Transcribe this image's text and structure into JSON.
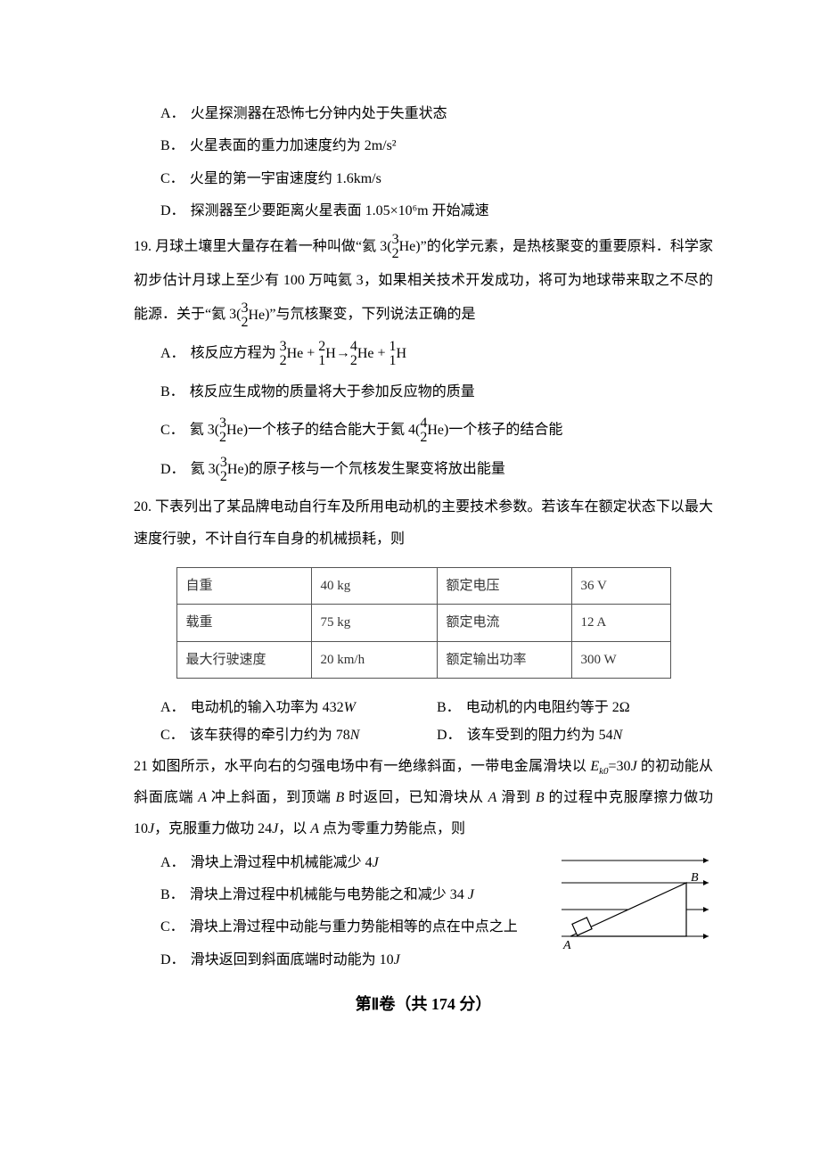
{
  "q18": {
    "A": "火星探测器在恐怖七分钟内处于失重状态",
    "B": "火星表面的重力加速度约为 2m/s²",
    "C": "火星的第一宇宙速度约 1.6km/s",
    "D": "探测器至少要距离火星表面 1.05×10⁶m 开始减速"
  },
  "q19": {
    "stem1": "19. 月球土壤里大量存在着一种叫做“氦 3(",
    "he3_a": "3",
    "he3_z": "2",
    "he3_sym": "He",
    "stem2": ")”的化学元素，是热核聚变的重要原料．科学家初步估计月球上至少有 100 万吨氦 3，如果相关技术开发成功，将可为地球带来取之不尽的能源．关于“氦 3(",
    "stem3": ")”与氘核聚变，下列说法正确的是",
    "A_pre": "核反应方程为 ",
    "eq": {
      "t1_a": "3",
      "t1_z": "2",
      "t1_s": "He",
      "plus1": " + ",
      "t2_a": "2",
      "t2_z": "1",
      "t2_s": "H",
      "arrow": "→",
      "t3_a": "4",
      "t3_z": "2",
      "t3_s": "He",
      "plus2": " + ",
      "t4_a": "1",
      "t4_z": "1",
      "t4_s": "H"
    },
    "B": "核反应生成物的质量将大于参加反应物的质量",
    "C_pre": "氦 3(",
    "C_mid": ")一个核子的结合能大于氦 4(",
    "he4_a": "4",
    "he4_z": "2",
    "he4_sym": "He",
    "C_post": ")一个核子的结合能",
    "D_pre": "氦 3(",
    "D_post": ")的原子核与一个氘核发生聚变将放出能量"
  },
  "q20": {
    "stem": "20. 下表列出了某品牌电动自行车及所用电动机的主要技术参数。若该车在额定状态下以最大速度行驶，不计自行车自身的机械损耗，则",
    "table": {
      "rows": [
        [
          "自重",
          "40 kg",
          "额定电压",
          "36 V"
        ],
        [
          "载重",
          "75 kg",
          "额定电流",
          "12 A"
        ],
        [
          "最大行驶速度",
          "20 km/h",
          "额定输出功率",
          "300 W"
        ]
      ],
      "col_widths": [
        "130px",
        "120px",
        "130px",
        "90px"
      ]
    },
    "A": "电动机的输入功率为 432",
    "A_unit": "W",
    "B": "电动机的内电阻约等于 2Ω",
    "C": "该车获得的牵引力约为 78",
    "C_unit": "N",
    "D": "该车受到的阻力约为 54",
    "D_unit": "N"
  },
  "q21": {
    "stem_a": "21 如图所示，水平向右的匀强电场中有一绝缘斜面，一带电金属滑块以 ",
    "Ek0": "E",
    "Ek0_sub": "k0",
    "Ek0_val": "=30",
    "J": "J",
    "stem_b": " 的初动能从斜面底端 ",
    "A_pt": "A",
    "stem_c": " 冲上斜面，到顶端 ",
    "B_pt": "B",
    "stem_d": " 时返回，已知滑块从 ",
    "stem_e": " 滑到 ",
    "stem_f": " 的过程中克服摩擦力做功 10",
    "stem_g": "，克服重力做功 24",
    "stem_h": "，以 ",
    "stem_i": " 点为零重力势能点，则",
    "A": "滑块上滑过程中机械能减少 4",
    "B": "滑块上滑过程中机械能与电势能之和减少 34 ",
    "C": "滑块上滑过程中动能与重力势能相等的点在中点之上",
    "D": "滑块返回到斜面底端时动能为 10",
    "diagram": {
      "arrow_color": "#000",
      "line_color": "#000",
      "A": "A",
      "B": "B"
    }
  },
  "section2": "第Ⅱ卷（共 174 分）"
}
